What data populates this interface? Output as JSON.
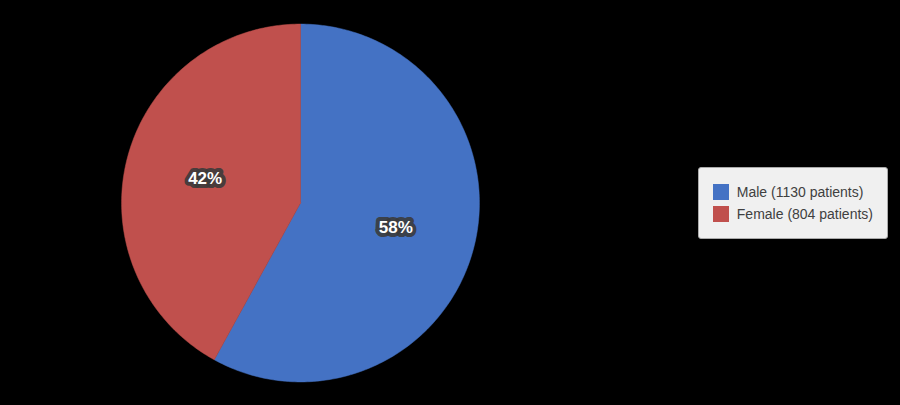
{
  "chart_data": {
    "type": "pie",
    "categories": [
      "Male (1130 patients)",
      "Female (804 patients)"
    ],
    "values": [
      58,
      42
    ],
    "value_labels": [
      "58%",
      "42%"
    ],
    "colors": [
      "#4472C4",
      "#C0504D"
    ],
    "data_labels": true,
    "legend": "right"
  }
}
